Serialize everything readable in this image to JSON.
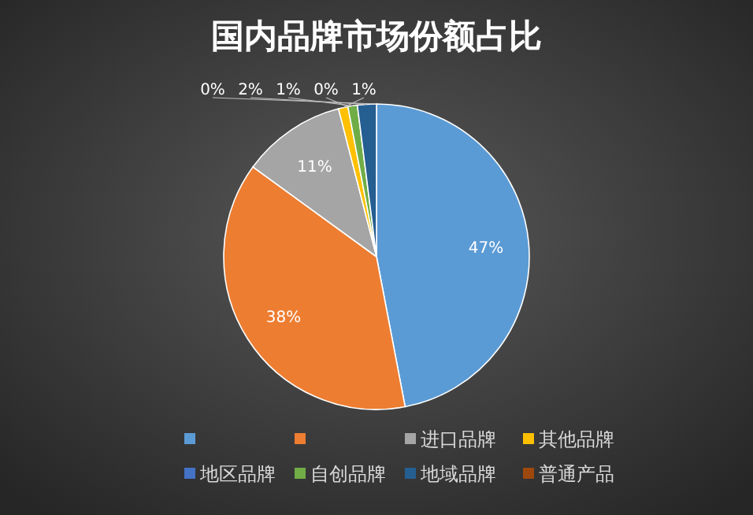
{
  "chart_data": {
    "type": "pie",
    "title": "国内品牌市场份额占比",
    "categories": [
      null,
      null,
      "进口品牌",
      "其他品牌",
      "地区品牌",
      "自创品牌",
      "地域品牌",
      "普通产品"
    ],
    "values": [
      47,
      38,
      11,
      1,
      0,
      1,
      2,
      0
    ],
    "value_labels": [
      "47%",
      "38%",
      "11%",
      "1%",
      "0%",
      "1%",
      "2%",
      "0%"
    ],
    "colors": [
      "#5b9bd5",
      "#ed7d31",
      "#a5a5a5",
      "#ffc000",
      "#4472c4",
      "#70ad47",
      "#255e91",
      "#9e480e"
    ],
    "legend": "bottom"
  }
}
